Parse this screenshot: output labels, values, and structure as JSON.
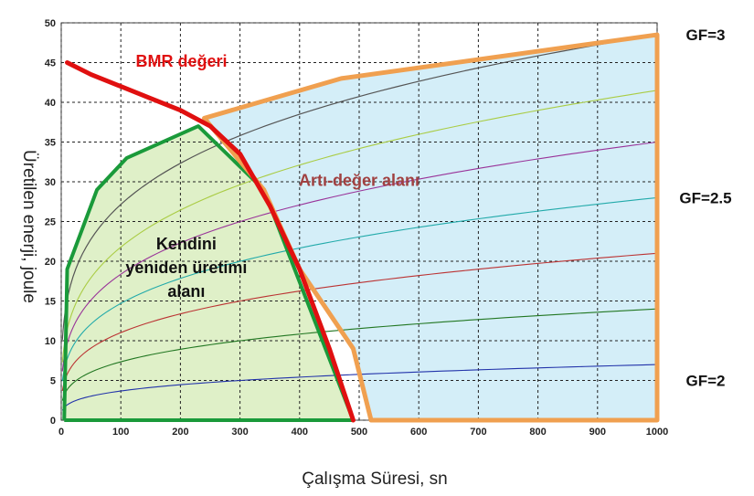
{
  "chart_data": {
    "type": "line",
    "xlabel": "Çalışma Süresi, sn",
    "ylabel": "Üretilen enerji, joule",
    "xlim": [
      0,
      1000
    ],
    "ylim": [
      0,
      50
    ],
    "xticks": [
      "0",
      "100",
      "200",
      "300",
      "400",
      "500",
      "600",
      "700",
      "800",
      "900",
      "1000"
    ],
    "yticks": [
      "0",
      "5",
      "10",
      "15",
      "20",
      "25",
      "30",
      "35",
      "40",
      "45",
      "50"
    ],
    "grid": true,
    "series": [
      {
        "name": "BMR değeri",
        "color": "#e01010",
        "x": [
          10,
          50,
          100,
          150,
          200,
          250,
          300,
          350,
          400,
          450,
          490
        ],
        "y": [
          45,
          43.5,
          42,
          40.5,
          39,
          37,
          33.5,
          27,
          19,
          9,
          0
        ]
      },
      {
        "name": "GF=3",
        "color": "#f0a050",
        "x": [
          240,
          470,
          1000
        ],
        "y": [
          38,
          43,
          48.5
        ]
      },
      {
        "name": "GF=2.5",
        "color": "#f0a050",
        "x": [
          1000
        ],
        "y": [
          28
        ]
      },
      {
        "name": "GF=2",
        "color": "#f0a050",
        "x": [
          1000
        ],
        "y": [
          7
        ]
      }
    ],
    "curves": [
      {
        "color": "#2233aa",
        "y_at_1000": 7
      },
      {
        "color": "#227722",
        "y_at_1000": 14
      },
      {
        "color": "#bb3333",
        "y_at_1000": 21
      },
      {
        "color": "#22aaaa",
        "y_at_1000": 28
      },
      {
        "color": "#993399",
        "y_at_1000": 35
      },
      {
        "color": "#aacc44",
        "y_at_1000": 41.5
      }
    ],
    "self_region": {
      "x": [
        5,
        10,
        60,
        110,
        230,
        340,
        490,
        5
      ],
      "y": [
        0,
        19,
        29,
        33,
        37,
        29,
        0,
        0
      ]
    },
    "surplus_region": {
      "x": [
        240,
        470,
        1000,
        1000,
        520,
        490,
        400,
        340
      ],
      "y": [
        38,
        43,
        48.5,
        0,
        0,
        9,
        19,
        29
      ]
    },
    "annotations": [
      {
        "text": "BMR değeri",
        "x": 125,
        "y": 44.5
      },
      {
        "text": "Artı-değer alanı",
        "x": 500,
        "y": 29.5
      },
      {
        "text": "Kendini",
        "x": 210,
        "y": 21.5
      },
      {
        "text": "yeniden üretimi",
        "x": 210,
        "y": 18.5
      },
      {
        "text": "alanı",
        "x": 210,
        "y": 15.5
      }
    ],
    "gf_labels": [
      "GF=3",
      "GF=2.5",
      "GF=2"
    ]
  }
}
